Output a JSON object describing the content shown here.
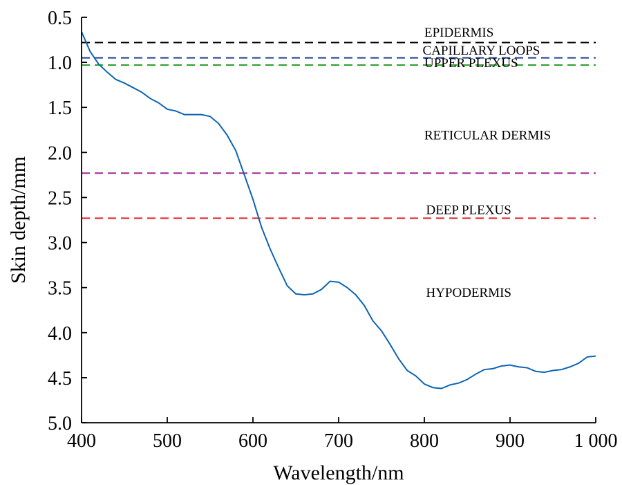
{
  "chart_data": {
    "type": "line",
    "title": "",
    "xlabel": "Wavelength/nm",
    "ylabel": "Skin depth/mm",
    "xlim": [
      400,
      1000
    ],
    "ylim": [
      0.5,
      5.0
    ],
    "y_inverted": true,
    "grid": false,
    "x_ticks": [
      {
        "value": 400,
        "label": "400"
      },
      {
        "value": 500,
        "label": "500"
      },
      {
        "value": 600,
        "label": "600"
      },
      {
        "value": 700,
        "label": "700"
      },
      {
        "value": 800,
        "label": "800"
      },
      {
        "value": 900,
        "label": "900"
      },
      {
        "value": 1000,
        "label": "1 000"
      }
    ],
    "y_ticks": [
      {
        "value": 0.5,
        "label": "0.5"
      },
      {
        "value": 1.0,
        "label": "1.0"
      },
      {
        "value": 1.5,
        "label": "1.5"
      },
      {
        "value": 2.0,
        "label": "2.0"
      },
      {
        "value": 2.5,
        "label": "2.5"
      },
      {
        "value": 3.0,
        "label": "3.0"
      },
      {
        "value": 3.5,
        "label": "3.5"
      },
      {
        "value": 4.0,
        "label": "4.0"
      },
      {
        "value": 4.5,
        "label": "4.5"
      },
      {
        "value": 5.0,
        "label": "5.0"
      }
    ],
    "series": [
      {
        "color": "#0a64b4",
        "x": [
          400,
          410,
          420,
          430,
          440,
          450,
          460,
          470,
          480,
          490,
          500,
          510,
          520,
          530,
          540,
          550,
          560,
          570,
          580,
          590,
          600,
          610,
          620,
          630,
          640,
          650,
          660,
          670,
          680,
          690,
          700,
          710,
          720,
          730,
          740,
          750,
          760,
          770,
          780,
          790,
          800,
          810,
          820,
          830,
          840,
          850,
          860,
          870,
          880,
          890,
          900,
          910,
          920,
          930,
          940,
          950,
          960,
          970,
          980,
          990,
          1000
        ],
        "y": [
          0.66,
          0.88,
          1.02,
          1.11,
          1.19,
          1.23,
          1.28,
          1.33,
          1.4,
          1.45,
          1.52,
          1.54,
          1.58,
          1.58,
          1.58,
          1.6,
          1.68,
          1.81,
          1.98,
          2.25,
          2.52,
          2.83,
          3.07,
          3.28,
          3.48,
          3.57,
          3.58,
          3.57,
          3.52,
          3.43,
          3.44,
          3.5,
          3.58,
          3.7,
          3.87,
          3.98,
          4.13,
          4.29,
          4.42,
          4.48,
          4.57,
          4.61,
          4.62,
          4.58,
          4.56,
          4.52,
          4.46,
          4.41,
          4.4,
          4.37,
          4.36,
          4.38,
          4.39,
          4.43,
          4.44,
          4.42,
          4.41,
          4.38,
          4.34,
          4.27,
          4.26
        ]
      }
    ],
    "boundaries": [
      {
        "depth": 0.78,
        "color": "#000000"
      },
      {
        "depth": 0.95,
        "color": "#1f3f99"
      },
      {
        "depth": 1.03,
        "color": "#2ca02c"
      },
      {
        "depth": 2.23,
        "color": "#a0268f"
      },
      {
        "depth": 2.73,
        "color": "#e3202a"
      }
    ],
    "layer_labels": [
      {
        "text": "EPIDERMIS",
        "x": 800,
        "depth": 0.66
      },
      {
        "text": "CAPILLARY LOOPS",
        "x": 798,
        "depth": 0.86
      },
      {
        "text": "UPPER PLEXUS",
        "x": 800,
        "depth": 1.0
      },
      {
        "text": "RETICULAR DERMIS",
        "x": 800,
        "depth": 1.8
      },
      {
        "text": "DEEP PLEXUS",
        "x": 802,
        "depth": 2.63
      },
      {
        "text": "HYPODERMIS",
        "x": 802,
        "depth": 3.55
      }
    ]
  }
}
